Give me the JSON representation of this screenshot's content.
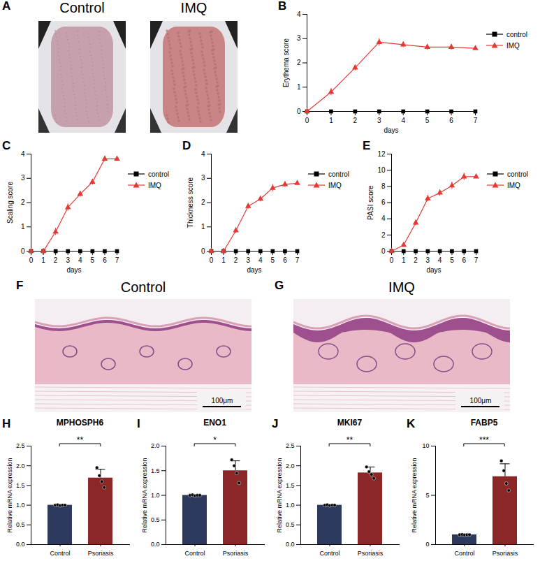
{
  "chart_data": [
    {
      "panel": "B",
      "type": "line",
      "xlabel": "days",
      "ylabel": "Erythema score",
      "x": [
        0,
        1,
        2,
        3,
        4,
        5,
        6,
        7
      ],
      "xlim": [
        0,
        7
      ],
      "xticks": [
        0,
        1,
        2,
        3,
        4,
        5,
        6,
        7
      ],
      "ylim": [
        0,
        4
      ],
      "yticks": [
        0,
        1,
        2,
        3,
        4
      ],
      "legend": "right",
      "series": [
        {
          "name": "control",
          "color": "#000000",
          "marker": "square",
          "values": [
            0,
            0,
            0,
            0,
            0,
            0,
            0,
            0
          ],
          "errors": [
            0,
            0,
            0,
            0,
            0,
            0,
            0,
            0
          ]
        },
        {
          "name": "IMQ",
          "color": "#e53935",
          "marker": "triangle",
          "values": [
            0,
            0.8,
            1.8,
            2.85,
            2.75,
            2.65,
            2.65,
            2.6
          ],
          "errors": [
            0,
            0.15,
            0.12,
            0.15,
            0.12,
            0.12,
            0.12,
            0.15
          ]
        }
      ]
    },
    {
      "panel": "C",
      "type": "line",
      "xlabel": "days",
      "ylabel": "Scaling score",
      "x": [
        0,
        1,
        2,
        3,
        4,
        5,
        6,
        7
      ],
      "xlim": [
        0,
        7
      ],
      "xticks": [
        0,
        1,
        2,
        3,
        4,
        5,
        6,
        7
      ],
      "ylim": [
        0,
        4
      ],
      "yticks": [
        0,
        1,
        2,
        3,
        4
      ],
      "legend": "right",
      "series": [
        {
          "name": "control",
          "color": "#000000",
          "marker": "square",
          "values": [
            0,
            0,
            0,
            0,
            0,
            0,
            0,
            0
          ],
          "errors": [
            0,
            0,
            0,
            0,
            0,
            0,
            0,
            0
          ]
        },
        {
          "name": "IMQ",
          "color": "#e53935",
          "marker": "triangle",
          "values": [
            0,
            0,
            0.8,
            1.8,
            2.35,
            2.85,
            3.8,
            3.8
          ],
          "errors": [
            0,
            0,
            0.15,
            0.15,
            0.12,
            0.12,
            0.12,
            0.12
          ]
        }
      ]
    },
    {
      "panel": "D",
      "type": "line",
      "xlabel": "days",
      "ylabel": "Thickness score",
      "x": [
        0,
        1,
        2,
        3,
        4,
        5,
        6,
        7
      ],
      "xlim": [
        0,
        7
      ],
      "xticks": [
        0,
        1,
        2,
        3,
        4,
        5,
        6,
        7
      ],
      "ylim": [
        0,
        4
      ],
      "yticks": [
        0,
        1,
        2,
        3,
        4
      ],
      "legend": "right",
      "series": [
        {
          "name": "control",
          "color": "#000000",
          "marker": "square",
          "values": [
            0,
            0,
            0,
            0,
            0,
            0,
            0,
            0
          ],
          "errors": [
            0,
            0,
            0,
            0,
            0,
            0,
            0,
            0
          ]
        },
        {
          "name": "IMQ",
          "color": "#e53935",
          "marker": "triangle",
          "values": [
            0,
            0,
            0.85,
            1.85,
            2.15,
            2.6,
            2.75,
            2.8
          ],
          "errors": [
            0,
            0,
            0.12,
            0.12,
            0.12,
            0.15,
            0.12,
            0.12
          ]
        }
      ]
    },
    {
      "panel": "E",
      "type": "line",
      "xlabel": "days",
      "ylabel": "PASI score",
      "x": [
        0,
        1,
        2,
        3,
        4,
        5,
        6,
        7
      ],
      "xlim": [
        0,
        7
      ],
      "xticks": [
        0,
        1,
        2,
        3,
        4,
        5,
        6,
        7
      ],
      "ylim": [
        0,
        12
      ],
      "yticks": [
        0,
        2,
        4,
        6,
        8,
        10,
        12
      ],
      "legend": "right",
      "series": [
        {
          "name": "control",
          "color": "#000000",
          "marker": "square",
          "values": [
            0,
            0,
            0,
            0,
            0,
            0,
            0,
            0
          ],
          "errors": [
            0,
            0,
            0,
            0,
            0,
            0,
            0,
            0
          ]
        },
        {
          "name": "IMQ",
          "color": "#e53935",
          "marker": "triangle",
          "values": [
            0,
            0.75,
            3.5,
            6.5,
            7.2,
            8.1,
            9.2,
            9.2
          ],
          "errors": [
            0,
            0.1,
            0.35,
            0.4,
            0.4,
            0.45,
            0.45,
            0.45
          ]
        }
      ]
    },
    {
      "panel": "H",
      "type": "bar",
      "title": "MPHOSPH6",
      "ylabel": "Relative mRNA expression",
      "categories": [
        "Control",
        "Psoriasis"
      ],
      "values": [
        1.0,
        1.69
      ],
      "errors": [
        0.01,
        0.22
      ],
      "points": [
        [
          1.0,
          1.01,
          0.99,
          1.0,
          1.0
        ],
        [
          1.95,
          1.75,
          1.6,
          1.45
        ]
      ],
      "colors": [
        "#2e3a5d",
        "#8c2727"
      ],
      "ylim": [
        0,
        2.5
      ],
      "yticks": [
        {
          "value": 0,
          "label": "0.0"
        },
        {
          "value": 0.5,
          "label": "0.5"
        },
        {
          "value": 1,
          "label": "1.0"
        },
        {
          "value": 1.5,
          "label": "1.5"
        },
        {
          "value": 2,
          "label": "2.0"
        },
        {
          "value": 2.5,
          "label": "2.5"
        }
      ],
      "significance": "**"
    },
    {
      "panel": "I",
      "type": "bar",
      "title": "ENO1",
      "ylabel": "Relative mRNA expression",
      "categories": [
        "Control",
        "Psoriasis"
      ],
      "values": [
        1.0,
        1.5
      ],
      "errors": [
        0.01,
        0.2
      ],
      "points": [
        [
          1.0,
          1.01,
          0.99,
          1.0,
          1.0
        ],
        [
          1.72,
          1.6,
          1.45,
          1.25
        ]
      ],
      "colors": [
        "#2e3a5d",
        "#8c2727"
      ],
      "ylim": [
        0,
        2
      ],
      "yticks": [
        {
          "value": 0,
          "label": "0.0"
        },
        {
          "value": 0.5,
          "label": "0.5"
        },
        {
          "value": 1,
          "label": "1.0"
        },
        {
          "value": 1.5,
          "label": "1.5"
        },
        {
          "value": 2,
          "label": "2.0"
        }
      ],
      "significance": "*"
    },
    {
      "panel": "J",
      "type": "bar",
      "title": "MKI67",
      "ylabel": "Relative mRNA expression",
      "categories": [
        "Control",
        "Psoriasis"
      ],
      "values": [
        1.0,
        1.82
      ],
      "errors": [
        0.01,
        0.15
      ],
      "points": [
        [
          1.0,
          1.01,
          0.99,
          1.0,
          1.0
        ],
        [
          1.97,
          1.85,
          1.78,
          1.68
        ]
      ],
      "colors": [
        "#2e3a5d",
        "#8c2727"
      ],
      "ylim": [
        0,
        2.5
      ],
      "yticks": [
        {
          "value": 0,
          "label": "0.0"
        },
        {
          "value": 0.5,
          "label": "0.5"
        },
        {
          "value": 1,
          "label": "1.0"
        },
        {
          "value": 1.5,
          "label": "1.5"
        },
        {
          "value": 2,
          "label": "2.0"
        },
        {
          "value": 2.5,
          "label": "2.5"
        }
      ],
      "significance": "**"
    },
    {
      "panel": "K",
      "type": "bar",
      "title": "FABP5",
      "ylabel": "Relative mRNA expression",
      "categories": [
        "Control",
        "Psoriasis"
      ],
      "values": [
        1.0,
        6.9
      ],
      "errors": [
        0.02,
        1.3
      ],
      "points": [
        [
          1.0,
          1.02,
          0.98,
          1.0,
          1.0
        ],
        [
          8.5,
          7.5,
          6.2,
          5.5
        ]
      ],
      "colors": [
        "#2e3a5d",
        "#8c2727"
      ],
      "ylim": [
        0,
        10
      ],
      "yticks": [
        0,
        5,
        10
      ],
      "significance": "***"
    }
  ],
  "images": [
    {
      "panel": "A",
      "titles": [
        "Control",
        "IMQ"
      ]
    },
    {
      "panel": "F",
      "title": "Control",
      "scale_bar": "100μm"
    },
    {
      "panel": "G",
      "title": "IMQ",
      "scale_bar": "100μm"
    }
  ]
}
